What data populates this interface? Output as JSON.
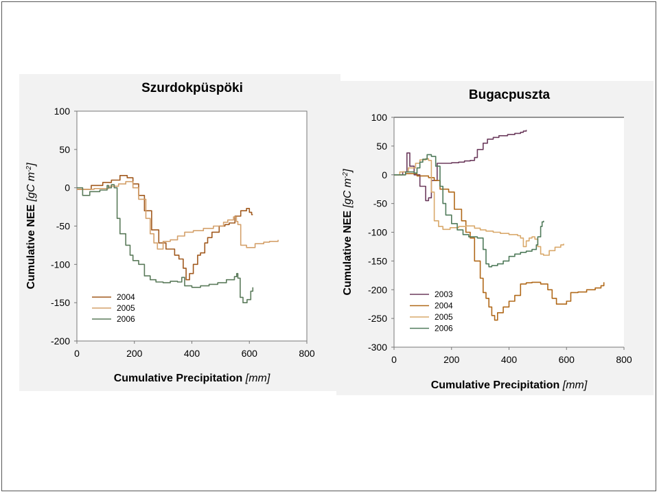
{
  "chart_data": [
    {
      "type": "line",
      "title": "Szurdokpüspöki",
      "xlabel": "Cumulative Precipitation",
      "xlabel_unit": "[mm]",
      "ylabel": "Cumulative NEE",
      "ylabel_unit": "[gC m-2]",
      "xlim": [
        0,
        800
      ],
      "ylim": [
        -200,
        100
      ],
      "xticks": [
        0,
        200,
        400,
        600,
        800
      ],
      "yticks": [
        100,
        50,
        0,
        -50,
        -100,
        -150,
        -200
      ],
      "grid": false,
      "legend_position": "bottom-left",
      "series": [
        {
          "name": "2004",
          "color": "#a0581c",
          "points": [
            [
              0,
              -2
            ],
            [
              50,
              3
            ],
            [
              90,
              7
            ],
            [
              120,
              10
            ],
            [
              150,
              16
            ],
            [
              175,
              13
            ],
            [
              195,
              5
            ],
            [
              215,
              -10
            ],
            [
              235,
              -30
            ],
            [
              260,
              -55
            ],
            [
              285,
              -72
            ],
            [
              310,
              -80
            ],
            [
              340,
              -88
            ],
            [
              355,
              -93
            ],
            [
              370,
              -105
            ],
            [
              380,
              -120
            ],
            [
              392,
              -112
            ],
            [
              405,
              -100
            ],
            [
              420,
              -88
            ],
            [
              430,
              -85
            ],
            [
              445,
              -72
            ],
            [
              455,
              -65
            ],
            [
              470,
              -58
            ],
            [
              495,
              -50
            ],
            [
              515,
              -48
            ],
            [
              530,
              -46
            ],
            [
              550,
              -37
            ],
            [
              570,
              -30
            ],
            [
              590,
              -27
            ],
            [
              600,
              -32
            ],
            [
              608,
              -35
            ],
            [
              612,
              -35
            ]
          ]
        },
        {
          "name": "2005",
          "color": "#d4a06a",
          "points": [
            [
              0,
              -2
            ],
            [
              60,
              -1
            ],
            [
              110,
              2
            ],
            [
              145,
              5
            ],
            [
              170,
              8
            ],
            [
              195,
              0
            ],
            [
              215,
              -15
            ],
            [
              240,
              -40
            ],
            [
              255,
              -60
            ],
            [
              268,
              -72
            ],
            [
              280,
              -80
            ],
            [
              300,
              -70
            ],
            [
              325,
              -68
            ],
            [
              350,
              -63
            ],
            [
              375,
              -58
            ],
            [
              405,
              -56
            ],
            [
              440,
              -53
            ],
            [
              475,
              -50
            ],
            [
              510,
              -45
            ],
            [
              525,
              -42
            ],
            [
              545,
              -38
            ],
            [
              555,
              -44
            ],
            [
              560,
              -48
            ],
            [
              570,
              -75
            ],
            [
              590,
              -78
            ],
            [
              620,
              -73
            ],
            [
              650,
              -71
            ],
            [
              670,
              -70
            ],
            [
              690,
              -70
            ],
            [
              700,
              -68
            ]
          ]
        },
        {
          "name": "2006",
          "color": "#5a7a5a",
          "points": [
            [
              0,
              0
            ],
            [
              20,
              -10
            ],
            [
              45,
              -5
            ],
            [
              80,
              -3
            ],
            [
              105,
              3
            ],
            [
              110,
              0
            ],
            [
              120,
              4
            ],
            [
              130,
              0
            ],
            [
              140,
              -40
            ],
            [
              150,
              -60
            ],
            [
              170,
              -75
            ],
            [
              185,
              -88
            ],
            [
              195,
              -95
            ],
            [
              215,
              -100
            ],
            [
              235,
              -115
            ],
            [
              255,
              -120
            ],
            [
              275,
              -123
            ],
            [
              300,
              -124
            ],
            [
              325,
              -122
            ],
            [
              350,
              -123
            ],
            [
              365,
              -117
            ],
            [
              375,
              -128
            ],
            [
              400,
              -130
            ],
            [
              430,
              -128
            ],
            [
              460,
              -126
            ],
            [
              490,
              -124
            ],
            [
              520,
              -120
            ],
            [
              548,
              -116
            ],
            [
              556,
              -112
            ],
            [
              560,
              -118
            ],
            [
              568,
              -143
            ],
            [
              578,
              -150
            ],
            [
              592,
              -146
            ],
            [
              605,
              -135
            ],
            [
              612,
              -130
            ]
          ]
        }
      ]
    },
    {
      "type": "line",
      "title": "Bugacpuszta",
      "xlabel": "Cumulative Precipitation",
      "xlabel_unit": "[mm]",
      "ylabel": "Cumulative NEE",
      "ylabel_unit": "[gC m-2]",
      "xlim": [
        0,
        800
      ],
      "ylim": [
        -300,
        100
      ],
      "xticks": [
        0,
        200,
        400,
        600,
        800
      ],
      "yticks": [
        100,
        50,
        0,
        -50,
        -100,
        -150,
        -200,
        -250,
        -300
      ],
      "grid": false,
      "legend_position": "bottom-left",
      "series": [
        {
          "name": "2003",
          "color": "#6b3a5c",
          "points": [
            [
              0,
              0
            ],
            [
              30,
              5
            ],
            [
              45,
              38
            ],
            [
              55,
              15
            ],
            [
              70,
              0
            ],
            [
              90,
              -20
            ],
            [
              110,
              -45
            ],
            [
              120,
              -40
            ],
            [
              130,
              -10
            ],
            [
              150,
              20
            ],
            [
              175,
              20
            ],
            [
              200,
              21
            ],
            [
              225,
              22
            ],
            [
              245,
              24
            ],
            [
              265,
              25
            ],
            [
              280,
              30
            ],
            [
              290,
              44
            ],
            [
              310,
              55
            ],
            [
              325,
              62
            ],
            [
              345,
              65
            ],
            [
              365,
              68
            ],
            [
              395,
              70
            ],
            [
              420,
              72
            ],
            [
              440,
              74
            ],
            [
              450,
              76
            ],
            [
              460,
              78
            ]
          ]
        },
        {
          "name": "2004",
          "color": "#b06818",
          "points": [
            [
              0,
              0
            ],
            [
              40,
              2
            ],
            [
              80,
              -2
            ],
            [
              120,
              -5
            ],
            [
              140,
              -10
            ],
            [
              160,
              -25
            ],
            [
              190,
              -30
            ],
            [
              210,
              -60
            ],
            [
              235,
              -80
            ],
            [
              250,
              -100
            ],
            [
              265,
              -110
            ],
            [
              280,
              -150
            ],
            [
              300,
              -180
            ],
            [
              310,
              -205
            ],
            [
              320,
              -215
            ],
            [
              330,
              -230
            ],
            [
              340,
              -245
            ],
            [
              350,
              -253
            ],
            [
              360,
              -240
            ],
            [
              380,
              -230
            ],
            [
              400,
              -220
            ],
            [
              420,
              -210
            ],
            [
              440,
              -190
            ],
            [
              460,
              -188
            ],
            [
              480,
              -187
            ],
            [
              500,
              -187
            ],
            [
              510,
              -190
            ],
            [
              520,
              -190
            ],
            [
              535,
              -200
            ],
            [
              550,
              -215
            ],
            [
              565,
              -225
            ],
            [
              580,
              -225
            ],
            [
              600,
              -220
            ],
            [
              615,
              -205
            ],
            [
              640,
              -204
            ],
            [
              670,
              -200
            ],
            [
              700,
              -197
            ],
            [
              720,
              -193
            ],
            [
              730,
              -187
            ]
          ]
        },
        {
          "name": "2005",
          "color": "#d9a86a",
          "points": [
            [
              0,
              0
            ],
            [
              20,
              5
            ],
            [
              50,
              12
            ],
            [
              75,
              20
            ],
            [
              90,
              26
            ],
            [
              110,
              28
            ],
            [
              120,
              25
            ],
            [
              130,
              -30
            ],
            [
              140,
              -80
            ],
            [
              155,
              -90
            ],
            [
              170,
              -95
            ],
            [
              195,
              -92
            ],
            [
              225,
              -90
            ],
            [
              250,
              -89
            ],
            [
              280,
              -93
            ],
            [
              300,
              -96
            ],
            [
              320,
              -98
            ],
            [
              345,
              -100
            ],
            [
              370,
              -102
            ],
            [
              400,
              -104
            ],
            [
              430,
              -106
            ],
            [
              440,
              -110
            ],
            [
              450,
              -125
            ],
            [
              460,
              -115
            ],
            [
              470,
              -110
            ],
            [
              480,
              -108
            ],
            [
              490,
              -112
            ],
            [
              500,
              -125
            ],
            [
              510,
              -138
            ],
            [
              520,
              -140
            ],
            [
              540,
              -132
            ],
            [
              560,
              -126
            ],
            [
              580,
              -122
            ],
            [
              590,
              -120
            ]
          ]
        },
        {
          "name": "2006",
          "color": "#4f7a5a",
          "points": [
            [
              0,
              0
            ],
            [
              40,
              5
            ],
            [
              70,
              3
            ],
            [
              80,
              12
            ],
            [
              90,
              22
            ],
            [
              100,
              27
            ],
            [
              115,
              35
            ],
            [
              130,
              32
            ],
            [
              145,
              15
            ],
            [
              160,
              -20
            ],
            [
              170,
              -50
            ],
            [
              180,
              -70
            ],
            [
              200,
              -85
            ],
            [
              220,
              -96
            ],
            [
              240,
              -104
            ],
            [
              260,
              -108
            ],
            [
              290,
              -110
            ],
            [
              310,
              -130
            ],
            [
              320,
              -155
            ],
            [
              330,
              -160
            ],
            [
              340,
              -158
            ],
            [
              360,
              -155
            ],
            [
              380,
              -150
            ],
            [
              400,
              -142
            ],
            [
              420,
              -138
            ],
            [
              440,
              -135
            ],
            [
              460,
              -133
            ],
            [
              480,
              -130
            ],
            [
              495,
              -122
            ],
            [
              500,
              -108
            ],
            [
              510,
              -90
            ],
            [
              515,
              -82
            ],
            [
              520,
              -80
            ]
          ]
        }
      ]
    }
  ]
}
